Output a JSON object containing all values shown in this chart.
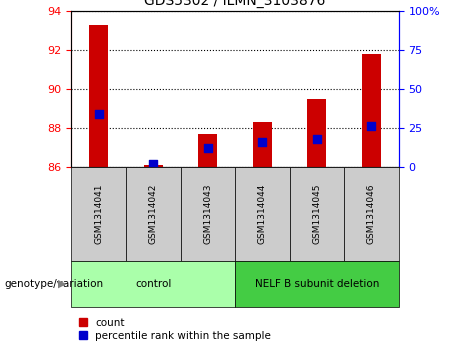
{
  "title": "GDS5302 / ILMN_3103876",
  "samples": [
    "GSM1314041",
    "GSM1314042",
    "GSM1314043",
    "GSM1314044",
    "GSM1314045",
    "GSM1314046"
  ],
  "count_values": [
    93.3,
    86.1,
    87.7,
    88.3,
    89.5,
    91.8
  ],
  "percentile_values": [
    34,
    2,
    12,
    16,
    18,
    26
  ],
  "ylim_left": [
    86,
    94
  ],
  "ylim_right": [
    0,
    100
  ],
  "yticks_left": [
    86,
    88,
    90,
    92,
    94
  ],
  "yticks_right": [
    0,
    25,
    50,
    75,
    100
  ],
  "yticklabels_right": [
    "0",
    "25",
    "50",
    "75",
    "100%"
  ],
  "bar_color": "#cc0000",
  "dot_color": "#0000cc",
  "bar_width": 0.35,
  "dot_size": 35,
  "group_labels": [
    "control",
    "NELF B subunit deletion"
  ],
  "group_ranges": [
    [
      0,
      2
    ],
    [
      3,
      5
    ]
  ],
  "group_color_light": "#aaffaa",
  "group_color_dark": "#44cc44",
  "annotation_label": "genotype/variation",
  "legend_items": [
    "count",
    "percentile rank within the sample"
  ],
  "bg_color": "#cccccc",
  "title_fontsize": 10
}
